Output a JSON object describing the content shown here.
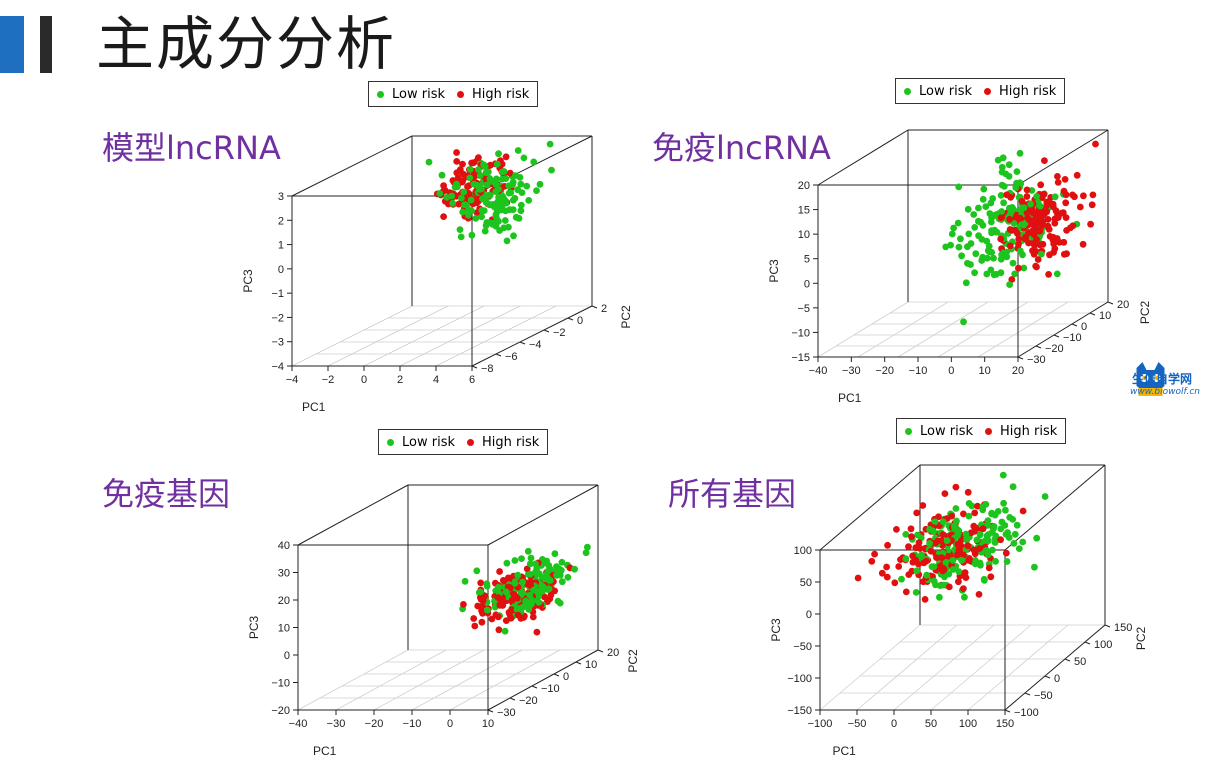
{
  "slide": {
    "title": "主成分分析"
  },
  "logo": {
    "name": "生信自学网",
    "url": "www.biowolf.cn"
  },
  "colors": {
    "low": "#1ec41e",
    "high": "#e01010",
    "accent": "#1f6fc1",
    "label": "#7030a0"
  },
  "chart_data": [
    {
      "type": "scatter",
      "panel_label": "模型lncRNA",
      "legend": [
        "Low risk",
        "High risk"
      ],
      "xlabel": "PC1",
      "ylabel": "PC2",
      "zlabel": "PC3",
      "x_ticks": [
        "−4",
        "−2",
        "0",
        "2",
        "4",
        "6"
      ],
      "y_ticks": [
        "−8",
        "−6",
        "−4",
        "−2",
        "0",
        "2"
      ],
      "z_ticks": [
        "−4",
        "−3",
        "−2",
        "−1",
        "0",
        "1",
        "2",
        "3"
      ],
      "xlim": [
        -4,
        6
      ],
      "ylim": [
        -9,
        3
      ],
      "zlim": [
        -4,
        3
      ],
      "series": [
        {
          "name": "Low risk",
          "cluster": {
            "x": 2.6,
            "y": -1,
            "z": 1.3,
            "sx": 1.0,
            "sy": 1.4,
            "sz": 0.75,
            "n": 130
          }
        },
        {
          "name": "High risk",
          "cluster": {
            "x": 0.9,
            "y": 0.3,
            "z": 1.5,
            "sx": 0.7,
            "sy": 1.0,
            "sz": 0.55,
            "n": 120
          }
        }
      ]
    },
    {
      "type": "scatter",
      "panel_label": "免疫lncRNA",
      "legend": [
        "Low risk",
        "High risk"
      ],
      "xlabel": "PC1",
      "ylabel": "PC2",
      "zlabel": "PC3",
      "x_ticks": [
        "−40",
        "−30",
        "−20",
        "−10",
        "0",
        "10",
        "20"
      ],
      "y_ticks": [
        "−30",
        "−20",
        "−10",
        "0",
        "10",
        "20"
      ],
      "z_ticks": [
        "−15",
        "−10",
        "−5",
        "0",
        "5",
        "10",
        "15",
        "20"
      ],
      "xlim": [
        -40,
        20
      ],
      "ylim": [
        -35,
        20
      ],
      "zlim": [
        -15,
        20
      ],
      "series": [
        {
          "name": "Low risk",
          "cluster": {
            "x": 0,
            "y": -6,
            "z": 5,
            "sx": 6,
            "sy": 8,
            "sz": 5,
            "n": 150
          }
        },
        {
          "name": "High risk",
          "cluster": {
            "x": 9,
            "y": -1,
            "z": 6,
            "sx": 4.5,
            "sy": 7,
            "sz": 4,
            "n": 150
          }
        }
      ]
    },
    {
      "type": "scatter",
      "panel_label": "免疫基因",
      "legend": [
        "Low risk",
        "High risk"
      ],
      "xlabel": "PC1",
      "ylabel": "PC2",
      "zlabel": "PC3",
      "x_ticks": [
        "−40",
        "−30",
        "−20",
        "−10",
        "0",
        "10"
      ],
      "y_ticks": [
        "−30",
        "−20",
        "−10",
        "0",
        "10",
        "20"
      ],
      "z_ticks": [
        "−20",
        "−10",
        "0",
        "10",
        "20",
        "30",
        "40"
      ],
      "xlim": [
        -40,
        10
      ],
      "ylim": [
        -35,
        20
      ],
      "zlim": [
        -20,
        40
      ],
      "series": [
        {
          "name": "Low risk",
          "cluster": {
            "x": 4,
            "y": -3,
            "z": 13,
            "sx": 4,
            "sy": 8,
            "sz": 4,
            "n": 160
          }
        },
        {
          "name": "High risk",
          "cluster": {
            "x": 2,
            "y": -6,
            "z": 10,
            "sx": 3.5,
            "sy": 7,
            "sz": 4,
            "n": 150
          }
        }
      ]
    },
    {
      "type": "scatter",
      "panel_label": "所有基因",
      "legend": [
        "Low risk",
        "High risk"
      ],
      "xlabel": "PC1",
      "ylabel": "PC2",
      "zlabel": "PC3",
      "x_ticks": [
        "−100",
        "−50",
        "0",
        "50",
        "100",
        "150"
      ],
      "y_ticks": [
        "−100",
        "−50",
        "0",
        "50",
        "100",
        "150"
      ],
      "z_ticks": [
        "−150",
        "−100",
        "−50",
        "0",
        "50",
        "100"
      ],
      "xlim": [
        -100,
        150
      ],
      "ylim": [
        -120,
        150
      ],
      "zlim": [
        -150,
        100
      ],
      "series": [
        {
          "name": "Low risk",
          "cluster": {
            "x": 30,
            "y": 10,
            "z": 45,
            "sx": 35,
            "sy": 45,
            "sz": 30,
            "n": 160
          }
        },
        {
          "name": "High risk",
          "cluster": {
            "x": 10,
            "y": 0,
            "z": 45,
            "sx": 30,
            "sy": 40,
            "sz": 28,
            "n": 160
          }
        }
      ]
    }
  ]
}
